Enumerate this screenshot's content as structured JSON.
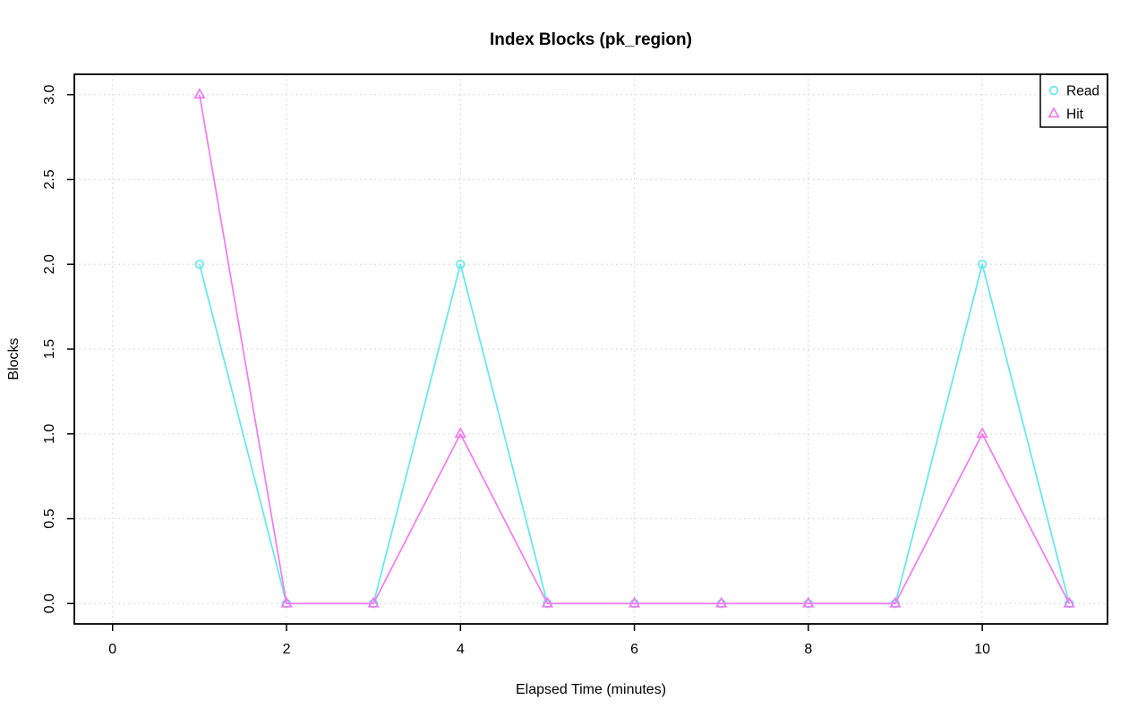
{
  "title": "Index Blocks (pk_region)",
  "chart_data": {
    "type": "line",
    "title": "Index Blocks (pk_region)",
    "xlabel": "Elapsed Time (minutes)",
    "ylabel": "Blocks",
    "x": [
      1,
      2,
      3,
      4,
      5,
      6,
      7,
      8,
      9,
      10,
      11
    ],
    "series": [
      {
        "name": "Read",
        "marker": "circle",
        "color": "#5FE9F2",
        "values": [
          2,
          0,
          0,
          2,
          0,
          0,
          0,
          0,
          0,
          2,
          0
        ]
      },
      {
        "name": "Hit",
        "marker": "triangle",
        "color": "#F57AF0",
        "values": [
          3,
          0,
          0,
          1,
          0,
          0,
          0,
          0,
          0,
          1,
          0
        ]
      }
    ],
    "xlim": [
      -0.44,
      11.44
    ],
    "ylim": [
      -0.12,
      3.12
    ],
    "xticks": [
      0,
      2,
      4,
      6,
      8,
      10
    ],
    "xtick_labels": [
      "0",
      "2",
      "4",
      "6",
      "8",
      "10"
    ],
    "yticks": [
      0,
      0.5,
      1,
      1.5,
      2,
      2.5,
      3
    ],
    "ytick_labels": [
      "0.0",
      "0.5",
      "1.0",
      "1.5",
      "2.0",
      "2.5",
      "3.0"
    ],
    "grid": true,
    "grid_color": "#D8D8D8",
    "axis_color": "#000000",
    "background": "#FFFFFF",
    "legend_position": "top-right",
    "legend": [
      {
        "label": "Read",
        "marker": "circle"
      },
      {
        "label": "Hit",
        "marker": "triangle"
      }
    ]
  }
}
